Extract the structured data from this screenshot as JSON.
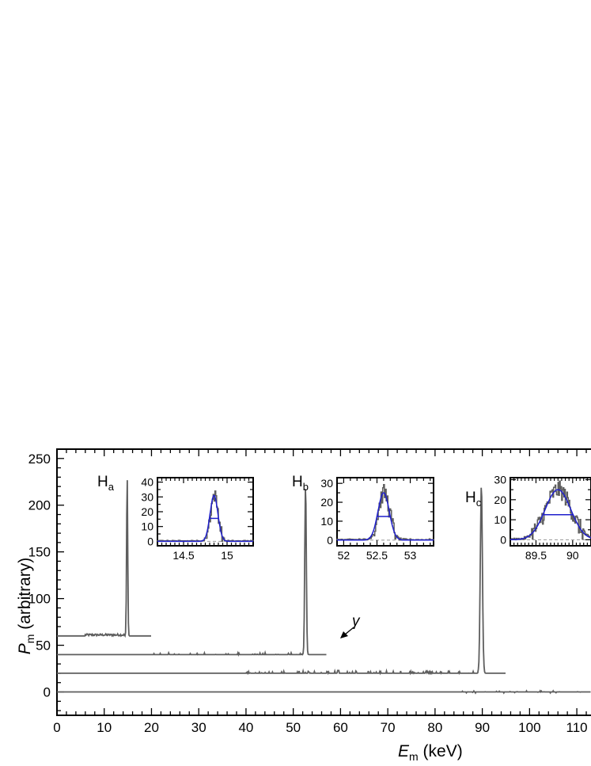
{
  "chart_data": {
    "type": "line",
    "xlabel": {
      "symbol": "E",
      "subscript": "m",
      "unit": " (keV)"
    },
    "ylabel": {
      "symbol": "P",
      "subscript": "m",
      "unit": " (arbitrary)"
    },
    "xlim": [
      0,
      113
    ],
    "ylim": [
      -25,
      260
    ],
    "xticks": [
      0,
      10,
      20,
      30,
      40,
      50,
      60,
      70,
      80,
      90,
      100,
      110
    ],
    "yticks": [
      0,
      50,
      100,
      150,
      200,
      250
    ],
    "series": [
      {
        "baseline": 60,
        "x_end": 20,
        "peak_center": 14.85,
        "peak_height": 232
      },
      {
        "baseline": 40,
        "x_end": 57,
        "peak_center": 52.6,
        "peak_height": 223
      },
      {
        "baseline": 20,
        "x_end": 95,
        "peak_center": 89.8,
        "peak_height": 222
      },
      {
        "baseline": 0,
        "x_end": 113
      }
    ],
    "annotations": [
      {
        "main": "H",
        "sub": "a",
        "x": 14.85
      },
      {
        "main": "H",
        "sub": "b",
        "x": 52.6
      },
      {
        "main": "H",
        "sub": "c",
        "x": 89.8
      },
      {
        "text": "γ",
        "arrow_to_x": 59.5,
        "arrow_to_y": 22
      }
    ],
    "insets": [
      {
        "xlim": [
          14.2,
          15.3
        ],
        "ylim": [
          -3,
          43
        ],
        "xticks": [
          14.5,
          15
        ],
        "xtick_labels": [
          "14.5",
          "15"
        ],
        "yticks": [
          0,
          10,
          20,
          30,
          40
        ],
        "fit_center": 14.85,
        "fit_amplitude": 31,
        "fit_sigma": 0.045,
        "fwhm_level": 15.5
      },
      {
        "xlim": [
          51.9,
          53.35
        ],
        "ylim": [
          -3,
          33
        ],
        "xticks": [
          52,
          52.5,
          53
        ],
        "xtick_labels": [
          "52",
          "52.5",
          "53"
        ],
        "yticks": [
          0,
          10,
          20,
          30
        ],
        "fit_center": 52.6,
        "fit_amplitude": 25,
        "fit_sigma": 0.085,
        "fwhm_level": 12.5
      },
      {
        "xlim": [
          89.15,
          90.25
        ],
        "ylim": [
          -3,
          31
        ],
        "xticks": [
          89.5,
          90
        ],
        "xtick_labels": [
          "89.5",
          "90"
        ],
        "yticks": [
          0,
          10,
          20,
          30
        ],
        "fit_center": 89.8,
        "fit_amplitude": 25,
        "fit_sigma": 0.175,
        "fwhm_level": 12.5
      }
    ]
  },
  "colors": {
    "data": "#5e5e5e",
    "fit": "#1f1fcc",
    "axis": "#000000",
    "dashed": "#999999"
  }
}
